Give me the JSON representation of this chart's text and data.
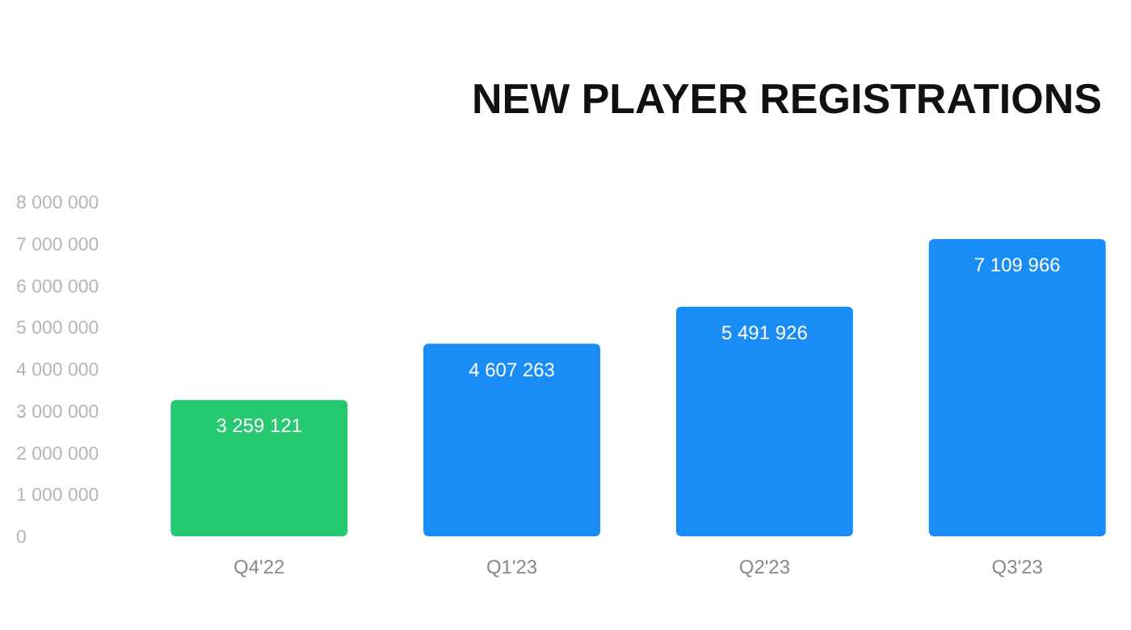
{
  "chart_data": {
    "type": "bar",
    "title": "NEW PLAYER REGISTRATIONS",
    "categories": [
      "Q4'22",
      "Q1'23",
      "Q2'23",
      "Q3'23"
    ],
    "values": [
      3259121,
      4607263,
      5491926,
      7109966
    ],
    "colors": [
      "#25c970",
      "#1a8cf5",
      "#1a8cf5",
      "#1a8cf5"
    ],
    "value_labels": [
      "3 259 121",
      "4 607 263",
      "5 491 926",
      "7 109 966"
    ],
    "ylim": [
      0,
      8000000
    ],
    "yticks": [
      {
        "value": 0,
        "label": "0"
      },
      {
        "value": 1000000,
        "label": "1 000 000"
      },
      {
        "value": 2000000,
        "label": "2 000 000"
      },
      {
        "value": 3000000,
        "label": "3 000 000"
      },
      {
        "value": 4000000,
        "label": "4 000 000"
      },
      {
        "value": 5000000,
        "label": "5 000 000"
      },
      {
        "value": 6000000,
        "label": "6 000 000"
      },
      {
        "value": 7000000,
        "label": "7 000 000"
      },
      {
        "value": 8000000,
        "label": "8 000 000"
      }
    ],
    "grid": false
  }
}
